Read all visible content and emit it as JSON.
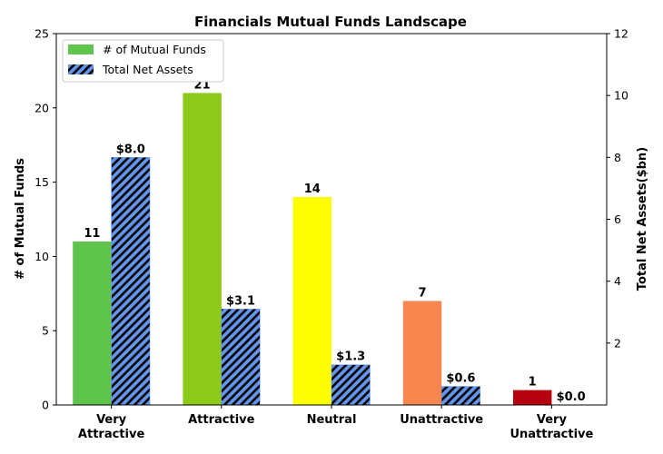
{
  "chart_data": {
    "type": "bar",
    "title": "Financials Mutual Funds Landscape",
    "categories": [
      [
        "Very",
        "Attractive"
      ],
      [
        "Attractive"
      ],
      [
        "Neutral"
      ],
      [
        "Unattractive"
      ],
      [
        "Very",
        "Unattractive"
      ]
    ],
    "series": [
      {
        "name": "# of Mutual Funds",
        "axis": "left",
        "values": [
          11,
          21,
          14,
          7,
          1
        ],
        "labels": [
          "11",
          "21",
          "14",
          "7",
          "1"
        ],
        "colors": [
          "#5ec44c",
          "#8cc919",
          "#ffff00",
          "#f7874f",
          "#b5000d"
        ],
        "legend_color": "#5ec44c"
      },
      {
        "name": "Total Net Assets",
        "axis": "right",
        "values": [
          8.0,
          3.1,
          1.3,
          0.6,
          0.0
        ],
        "labels": [
          "$8.0",
          "$3.1",
          "$1.3",
          "$0.6",
          "$0.0"
        ],
        "color": "#6495ed",
        "hatch": "diagonal"
      }
    ],
    "ylabel_left": "# of Mutual Funds",
    "ylabel_right": "Total Net Assets($bn)",
    "ylim_left": [
      0,
      25
    ],
    "ylim_right": [
      0,
      12
    ],
    "yticks_left": [
      "0",
      "5",
      "10",
      "15",
      "20",
      "25"
    ],
    "yticks_right": [
      "2",
      "4",
      "6",
      "8",
      "10",
      "12"
    ],
    "grid": false,
    "legend_position": "top-left"
  }
}
